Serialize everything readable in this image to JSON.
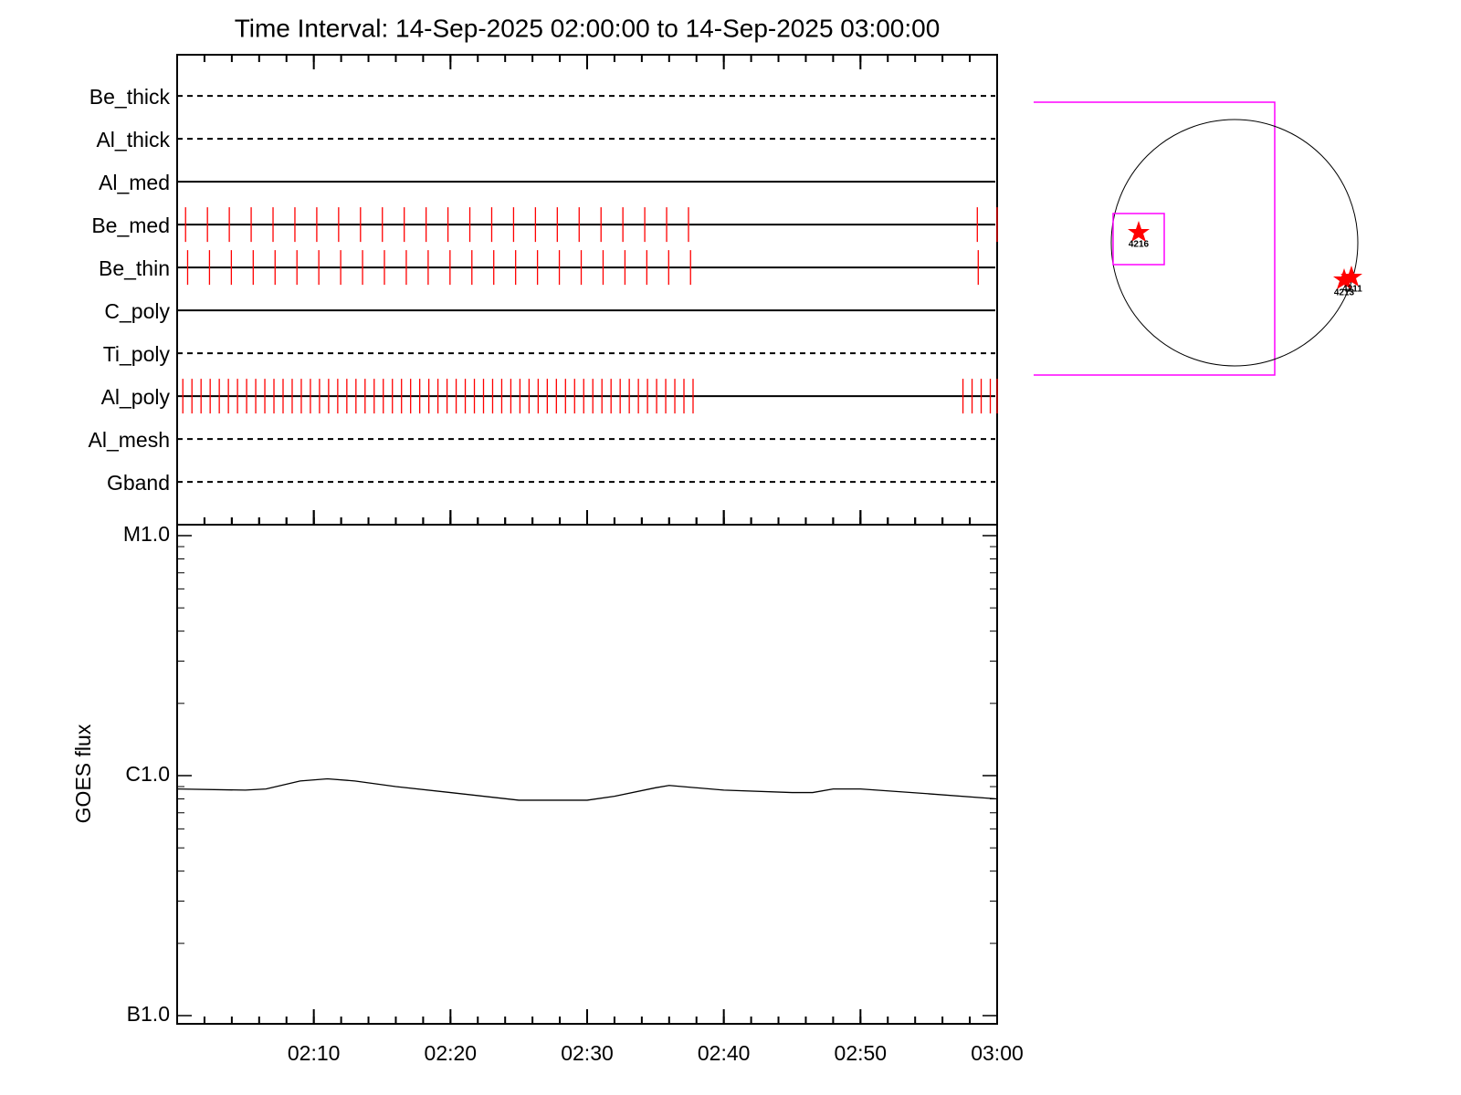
{
  "chart_data": [
    {
      "type": "timeline",
      "title": "Time Interval: 14-Sep-2025 02:00:00 to 14-Sep-2025 03:00:00",
      "xlim": [
        "02:00",
        "03:00"
      ],
      "xticks": [
        "02:10",
        "02:20",
        "02:30",
        "02:40",
        "02:50",
        "03:00"
      ],
      "color": "#ff0000",
      "rows": [
        {
          "name": "Be_thick",
          "line": "dashed"
        },
        {
          "name": "Al_thick",
          "line": "dashed"
        },
        {
          "name": "Al_med",
          "line": "solid"
        },
        {
          "name": "Be_med",
          "line": "solid",
          "times": [
            "02:00:37",
            "02:02:13",
            "02:03:49",
            "02:05:25",
            "02:07:01",
            "02:08:37",
            "02:10:13",
            "02:11:49",
            "02:13:25",
            "02:15:01",
            "02:16:37",
            "02:18:13",
            "02:19:49",
            "02:21:25",
            "02:23:01",
            "02:24:37",
            "02:26:13",
            "02:27:49",
            "02:29:25",
            "02:31:01",
            "02:32:37",
            "02:34:13",
            "02:35:49",
            "02:37:25",
            "02:58:33",
            "03:00:00"
          ]
        },
        {
          "name": "Be_thin",
          "line": "solid",
          "times": [
            "02:00:46",
            "02:02:22",
            "02:03:58",
            "02:05:34",
            "02:07:10",
            "02:08:46",
            "02:10:22",
            "02:11:58",
            "02:13:34",
            "02:15:10",
            "02:16:46",
            "02:18:22",
            "02:19:58",
            "02:21:34",
            "02:23:10",
            "02:24:46",
            "02:26:22",
            "02:27:58",
            "02:29:34",
            "02:31:10",
            "02:32:46",
            "02:34:22",
            "02:35:58",
            "02:37:34",
            "02:58:37"
          ]
        },
        {
          "name": "C_poly",
          "line": "solid"
        },
        {
          "name": "Ti_poly",
          "line": "dashed"
        },
        {
          "name": "Al_poly",
          "line": "solid",
          "times": [
            "02:00:25",
            "02:01:05",
            "02:01:45",
            "02:02:25",
            "02:03:05",
            "02:03:45",
            "02:04:25",
            "02:05:05",
            "02:05:45",
            "02:06:25",
            "02:07:05",
            "02:07:45",
            "02:08:25",
            "02:09:05",
            "02:09:45",
            "02:10:25",
            "02:11:05",
            "02:11:45",
            "02:12:25",
            "02:13:05",
            "02:13:45",
            "02:14:25",
            "02:15:05",
            "02:15:45",
            "02:16:25",
            "02:17:05",
            "02:17:45",
            "02:18:25",
            "02:19:05",
            "02:19:45",
            "02:20:25",
            "02:21:05",
            "02:21:45",
            "02:22:25",
            "02:23:05",
            "02:23:45",
            "02:24:25",
            "02:25:05",
            "02:25:45",
            "02:26:25",
            "02:27:05",
            "02:27:45",
            "02:28:25",
            "02:29:05",
            "02:29:45",
            "02:30:25",
            "02:31:05",
            "02:31:45",
            "02:32:25",
            "02:33:05",
            "02:33:45",
            "02:34:25",
            "02:35:05",
            "02:35:45",
            "02:36:25",
            "02:37:05",
            "02:37:45",
            "02:57:30",
            "02:58:10",
            "02:58:50",
            "02:59:30",
            "03:00:00"
          ]
        },
        {
          "name": "Al_mesh",
          "line": "dashed"
        },
        {
          "name": "Gband",
          "line": "dashed"
        }
      ]
    },
    {
      "type": "line",
      "y_label": "GOES flux",
      "log_y": true,
      "ylim": [
        1e-07,
        1e-05
      ],
      "yticks": [
        {
          "value": 1e-07,
          "label": "B1.0"
        },
        {
          "value": 1e-06,
          "label": "C1.0"
        },
        {
          "value": 1e-05,
          "label": "M1.0"
        }
      ],
      "xlim": [
        "02:00",
        "03:00"
      ],
      "xticks": [
        "02:10",
        "02:20",
        "02:30",
        "02:40",
        "02:50",
        "03:00"
      ],
      "color": "#000000",
      "x": [
        "02:00:00",
        "02:05:00",
        "02:06:30",
        "02:09:00",
        "02:11:00",
        "02:13:00",
        "02:16:00",
        "02:20:00",
        "02:25:00",
        "02:30:00",
        "02:32:00",
        "02:35:00",
        "02:36:00",
        "02:40:00",
        "02:45:00",
        "02:46:30",
        "02:48:00",
        "02:50:00",
        "02:55:00",
        "03:00:00"
      ],
      "values": [
        8.8e-07,
        8.7e-07,
        8.8e-07,
        9.5e-07,
        9.7e-07,
        9.5e-07,
        9e-07,
        8.5e-07,
        7.9e-07,
        7.9e-07,
        8.2e-07,
        8.9e-07,
        9.1e-07,
        8.7e-07,
        8.5e-07,
        8.5e-07,
        8.8e-07,
        8.8e-07,
        8.4e-07,
        8e-07
      ]
    }
  ],
  "disk": {
    "regions": [
      {
        "label": "4216"
      },
      {
        "label": "4213"
      },
      {
        "label": "4211"
      }
    ]
  }
}
